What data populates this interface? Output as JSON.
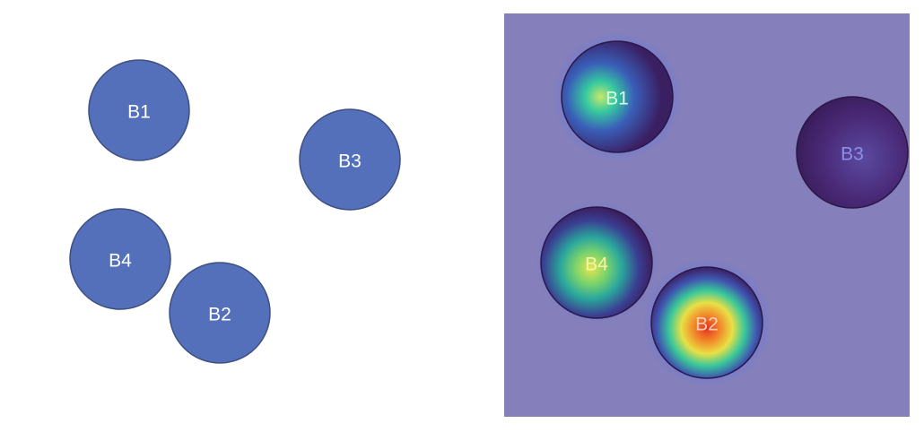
{
  "left_panel": {
    "balls": [
      {
        "label": "B1",
        "fill": "#5470bb"
      },
      {
        "label": "B2",
        "fill": "#5470bb"
      },
      {
        "label": "B3",
        "fill": "#5470bb"
      },
      {
        "label": "B4",
        "fill": "#5470bb"
      }
    ],
    "label_color": "#ffffff",
    "outline_color": "#3f4f7e"
  },
  "right_panel": {
    "background_color": "#8580bb",
    "balls": [
      {
        "label": "B1",
        "label_color": "#d8ffe6"
      },
      {
        "label": "B2",
        "label_color": "#ffd0bb"
      },
      {
        "label": "B3",
        "label_color": "#8d8ee6"
      },
      {
        "label": "B4",
        "label_color": "#f6f4a6"
      }
    ]
  }
}
